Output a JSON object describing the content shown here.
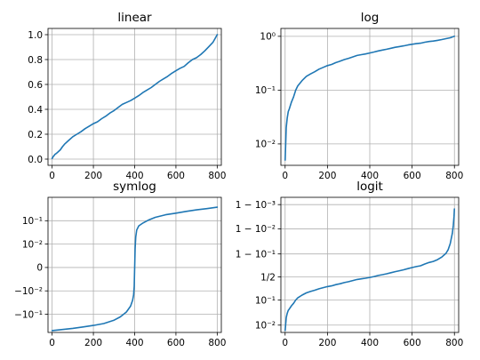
{
  "chart_data": [
    {
      "type": "line",
      "title": "linear",
      "yscale": "linear",
      "xlim": [
        -20,
        820
      ],
      "ylim": [
        -0.05,
        1.05
      ],
      "xticks": [
        {
          "value": 0,
          "label": "0"
        },
        {
          "value": 200,
          "label": "200"
        },
        {
          "value": 400,
          "label": "400"
        },
        {
          "value": 600,
          "label": "600"
        },
        {
          "value": 800,
          "label": "800"
        }
      ],
      "yticks": [
        {
          "value": 0,
          "label": "0.0"
        },
        {
          "value": 0.2,
          "label": "0.2"
        },
        {
          "value": 0.4,
          "label": "0.4"
        },
        {
          "value": 0.6,
          "label": "0.6"
        },
        {
          "value": 0.8,
          "label": "0.8"
        },
        {
          "value": 1.0,
          "label": "1.0"
        }
      ],
      "grid": true,
      "series": [
        {
          "color": "#1f77b4",
          "x": [
            0,
            5,
            10,
            15,
            20,
            30,
            40,
            50,
            60,
            80,
            100,
            120,
            140,
            160,
            180,
            200,
            220,
            240,
            260,
            280,
            300,
            320,
            340,
            360,
            380,
            400,
            420,
            440,
            460,
            480,
            500,
            520,
            540,
            560,
            580,
            600,
            620,
            640,
            660,
            680,
            700,
            720,
            740,
            760,
            780,
            800
          ],
          "y": [
            0.005,
            0.02,
            0.03,
            0.04,
            0.045,
            0.06,
            0.075,
            0.1,
            0.12,
            0.15,
            0.18,
            0.2,
            0.22,
            0.245,
            0.265,
            0.285,
            0.3,
            0.325,
            0.345,
            0.37,
            0.39,
            0.415,
            0.44,
            0.455,
            0.47,
            0.49,
            0.51,
            0.535,
            0.555,
            0.575,
            0.6,
            0.625,
            0.645,
            0.665,
            0.69,
            0.71,
            0.73,
            0.745,
            0.775,
            0.8,
            0.815,
            0.84,
            0.87,
            0.905,
            0.94,
            1.0
          ]
        }
      ]
    },
    {
      "type": "line",
      "title": "log",
      "yscale": "log",
      "xlim": [
        -20,
        820
      ],
      "ylim": [
        0.004,
        1.4
      ],
      "xticks": [
        {
          "value": 0,
          "label": "0"
        },
        {
          "value": 200,
          "label": "200"
        },
        {
          "value": 400,
          "label": "400"
        },
        {
          "value": 600,
          "label": "600"
        },
        {
          "value": 800,
          "label": "800"
        }
      ],
      "yticks": [
        {
          "value": 0.01,
          "label": "10⁻²"
        },
        {
          "value": 0.1,
          "label": "10⁻¹"
        },
        {
          "value": 1,
          "label": "10⁰"
        }
      ],
      "grid": true,
      "series": [
        {
          "color": "#1f77b4",
          "x": [
            0,
            5,
            10,
            15,
            20,
            30,
            40,
            50,
            60,
            80,
            100,
            120,
            140,
            160,
            180,
            200,
            220,
            240,
            260,
            280,
            300,
            320,
            340,
            360,
            380,
            400,
            420,
            440,
            460,
            480,
            500,
            520,
            540,
            560,
            580,
            600,
            620,
            640,
            660,
            680,
            700,
            720,
            740,
            760,
            780,
            800
          ],
          "y": [
            0.005,
            0.02,
            0.03,
            0.04,
            0.045,
            0.06,
            0.075,
            0.1,
            0.12,
            0.15,
            0.18,
            0.2,
            0.22,
            0.245,
            0.265,
            0.285,
            0.3,
            0.325,
            0.345,
            0.37,
            0.39,
            0.415,
            0.44,
            0.455,
            0.47,
            0.49,
            0.51,
            0.535,
            0.555,
            0.575,
            0.6,
            0.625,
            0.645,
            0.665,
            0.69,
            0.71,
            0.73,
            0.745,
            0.775,
            0.8,
            0.815,
            0.84,
            0.87,
            0.905,
            0.94,
            1.0
          ]
        }
      ]
    },
    {
      "type": "line",
      "title": "symlog",
      "yscale": "symlog",
      "linthresh": 0.01,
      "xlim": [
        -20,
        820
      ],
      "ylim": [
        -0.6,
        1.0
      ],
      "xticks": [
        {
          "value": 0,
          "label": "0"
        },
        {
          "value": 200,
          "label": "200"
        },
        {
          "value": 400,
          "label": "400"
        },
        {
          "value": 600,
          "label": "600"
        },
        {
          "value": 800,
          "label": "800"
        }
      ],
      "yticks": [
        {
          "value": -0.1,
          "label": "−10⁻¹"
        },
        {
          "value": -0.01,
          "label": "−10⁻²"
        },
        {
          "value": 0,
          "label": "0"
        },
        {
          "value": 0.01,
          "label": "10⁻²"
        },
        {
          "value": 0.1,
          "label": "10⁻¹"
        }
      ],
      "grid": true,
      "series": [
        {
          "color": "#1f77b4",
          "x": [
            0,
            50,
            100,
            150,
            200,
            250,
            300,
            330,
            360,
            380,
            390,
            395,
            398,
            400,
            402,
            405,
            410,
            420,
            440,
            470,
            500,
            550,
            600,
            650,
            700,
            750,
            800
          ],
          "y": [
            -0.5,
            -0.45,
            -0.4,
            -0.35,
            -0.3,
            -0.25,
            -0.18,
            -0.13,
            -0.08,
            -0.045,
            -0.025,
            -0.015,
            -0.008,
            0,
            0.008,
            0.02,
            0.04,
            0.06,
            0.08,
            0.11,
            0.14,
            0.18,
            0.21,
            0.25,
            0.29,
            0.33,
            0.38
          ]
        }
      ]
    },
    {
      "type": "line",
      "title": "logit",
      "yscale": "logit",
      "xlim": [
        -20,
        820
      ],
      "ylim": [
        0.005,
        0.9995
      ],
      "xticks": [
        {
          "value": 0,
          "label": "0"
        },
        {
          "value": 200,
          "label": "200"
        },
        {
          "value": 400,
          "label": "400"
        },
        {
          "value": 600,
          "label": "600"
        },
        {
          "value": 800,
          "label": "800"
        }
      ],
      "yticks": [
        {
          "value": 0.01,
          "label": "10⁻²"
        },
        {
          "value": 0.1,
          "label": "10⁻¹"
        },
        {
          "value": 0.5,
          "label": "1/2"
        },
        {
          "value": 0.9,
          "label": "1 − 10⁻¹"
        },
        {
          "value": 0.99,
          "label": "1 − 10⁻²"
        },
        {
          "value": 0.999,
          "label": "1 − 10⁻³"
        }
      ],
      "grid": true,
      "series": [
        {
          "color": "#1f77b4",
          "x": [
            0,
            5,
            10,
            15,
            20,
            30,
            40,
            50,
            60,
            80,
            100,
            120,
            140,
            160,
            180,
            200,
            220,
            240,
            260,
            280,
            300,
            320,
            340,
            360,
            380,
            400,
            420,
            440,
            460,
            480,
            500,
            520,
            540,
            560,
            580,
            600,
            620,
            640,
            660,
            680,
            700,
            720,
            740,
            760,
            770,
            780,
            790,
            795,
            798,
            800
          ],
          "y": [
            0.006,
            0.02,
            0.03,
            0.04,
            0.045,
            0.06,
            0.075,
            0.1,
            0.12,
            0.15,
            0.18,
            0.2,
            0.22,
            0.245,
            0.265,
            0.285,
            0.3,
            0.325,
            0.345,
            0.37,
            0.39,
            0.415,
            0.44,
            0.455,
            0.47,
            0.49,
            0.51,
            0.535,
            0.555,
            0.575,
            0.6,
            0.625,
            0.645,
            0.665,
            0.69,
            0.71,
            0.73,
            0.745,
            0.775,
            0.8,
            0.815,
            0.84,
            0.87,
            0.905,
            0.93,
            0.96,
            0.985,
            0.993,
            0.997,
            0.9985
          ]
        }
      ]
    }
  ]
}
